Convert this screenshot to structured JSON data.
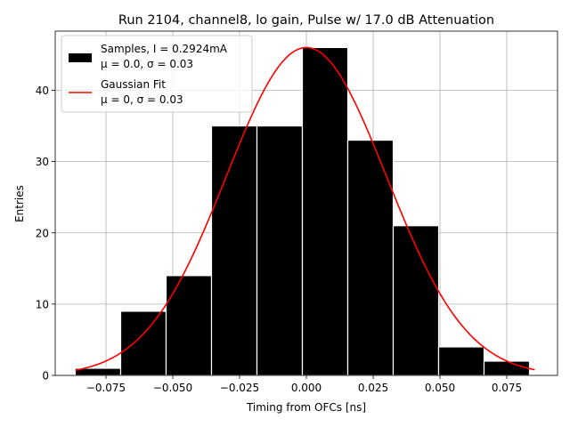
{
  "chart_data": {
    "type": "bar",
    "title": "Run 2104, channel8, lo gain, Pulse w/ 17.0 dB Attenuation",
    "xlabel": "Timing from OFCs [ns]",
    "ylabel": "Entries",
    "xlim": [
      -0.094,
      0.094
    ],
    "ylim": [
      0,
      48.3
    ],
    "grid": true,
    "legend_position": "top-left",
    "xticks": [
      -0.075,
      -0.05,
      -0.025,
      0.0,
      0.025,
      0.05,
      0.075
    ],
    "xtick_labels": [
      "−0.075",
      "−0.050",
      "−0.025",
      "0.000",
      "0.025",
      "0.050",
      "0.075"
    ],
    "yticks": [
      0,
      10,
      20,
      30,
      40
    ],
    "ytick_labels": [
      "0",
      "10",
      "20",
      "30",
      "40"
    ],
    "bin_edges": [
      -0.0865,
      -0.0695,
      -0.0525,
      -0.0355,
      -0.0185,
      -0.0015,
      0.0155,
      0.0325,
      0.0495,
      0.0665,
      0.0835
    ],
    "counts": [
      1,
      9,
      14,
      35,
      35,
      46,
      33,
      21,
      4,
      2
    ],
    "histogram_color": "#000000",
    "histogram_edge_color": "#ffffff",
    "fit": {
      "mu": 0.0,
      "sigma": 0.03,
      "amplitude": 46,
      "x_range": [
        -0.0865,
        0.0855
      ],
      "color": "#ff0000"
    },
    "legend": [
      {
        "label_line1": "Samples, I = 0.2924mA",
        "label_line2": "μ = 0.0, σ = 0.03"
      },
      {
        "label_line1": "Gaussian Fit",
        "label_line2": "μ = 0, σ = 0.03"
      }
    ]
  }
}
